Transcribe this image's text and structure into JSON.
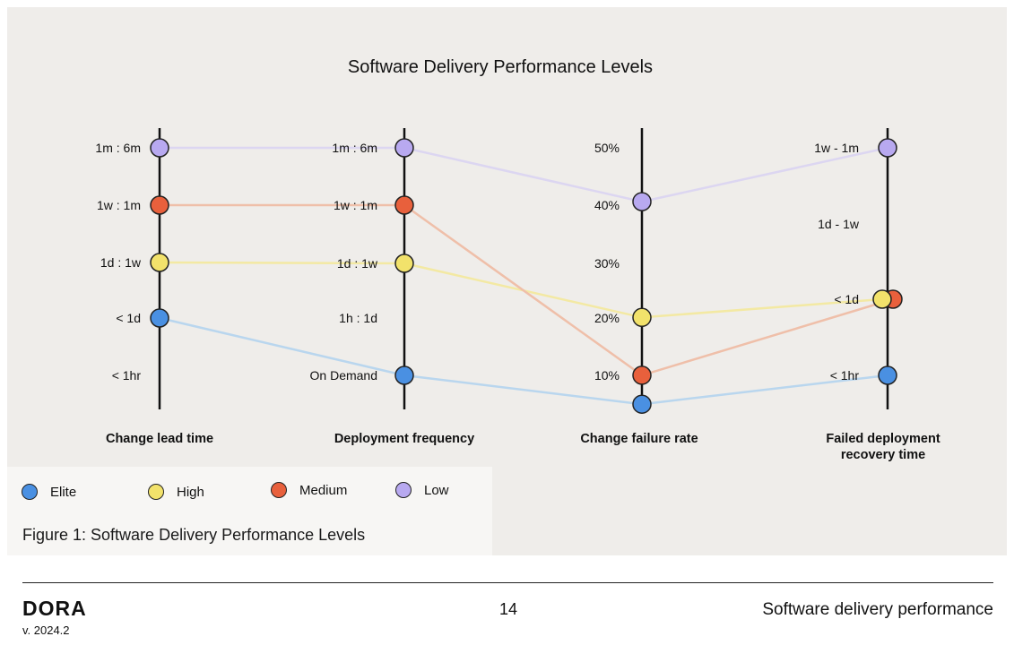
{
  "chart_data": {
    "type": "parallel-coordinates",
    "title": "Software Delivery Performance Levels",
    "axes": [
      {
        "name": "Change lead time",
        "ticks": [
          "1m : 6m",
          "1w : 1m",
          "1d : 1w",
          "< 1d",
          "< 1hr"
        ]
      },
      {
        "name": "Deployment frequency",
        "ticks": [
          "1m : 6m",
          "1w : 1m",
          "1d : 1w",
          "1h : 1d",
          "On Demand"
        ]
      },
      {
        "name": "Change failure rate",
        "ticks": [
          "50%",
          "40%",
          "30%",
          "20%",
          "10%"
        ]
      },
      {
        "name": "Failed deployment recovery time",
        "ticks": [
          "1w - 1m",
          "1d - 1w",
          "< 1d",
          "< 1hr"
        ]
      }
    ],
    "series": [
      {
        "name": "Elite",
        "color": "#4a90e2",
        "line_color": "#b9d6ee",
        "values": [
          "< 1d",
          "On Demand",
          "5%",
          "< 1hr"
        ]
      },
      {
        "name": "High",
        "color": "#f2e26b",
        "line_color": "#f3e9a3",
        "values": [
          "1d : 1w",
          "1d : 1w",
          "20%",
          "< 1d"
        ]
      },
      {
        "name": "Medium",
        "color": "#e8603c",
        "line_color": "#efbfa9",
        "values": [
          "1w : 1m",
          "1w : 1m",
          "10%",
          "< 1d"
        ]
      },
      {
        "name": "Low",
        "color": "#b8a9f0",
        "line_color": "#dcd6f1",
        "values": [
          "1m : 6m",
          "1m : 6m",
          "40%",
          "1w - 1m"
        ]
      }
    ]
  },
  "caption": "Figure 1: Software Delivery Performance Levels",
  "footer": {
    "brand": "DORA",
    "version": "v. 2024.2",
    "page": "14",
    "section": "Software delivery performance"
  }
}
